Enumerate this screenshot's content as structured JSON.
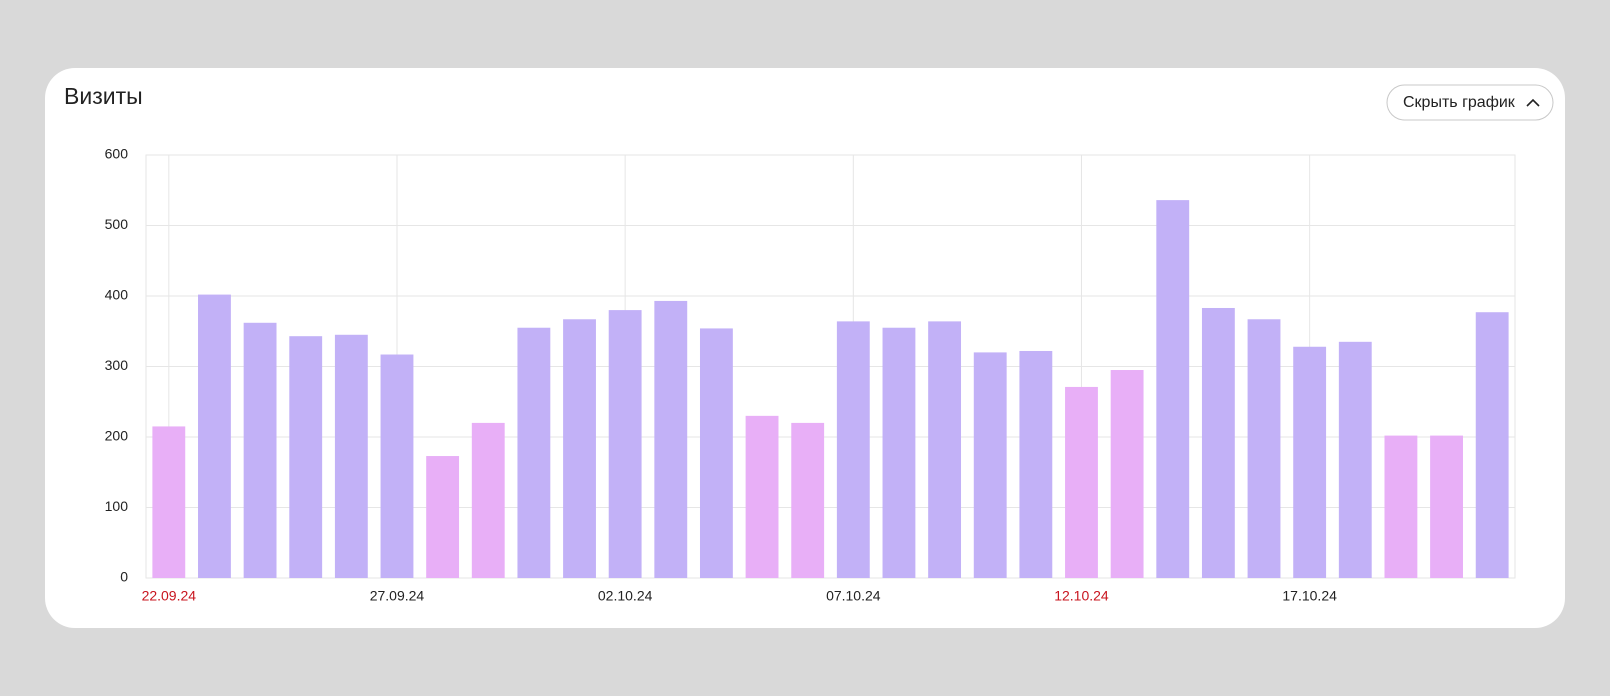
{
  "header": {
    "title": "Визиты",
    "button": "Скрыть график"
  },
  "chart_data": {
    "type": "bar",
    "categories": [
      "22.09.24",
      null,
      null,
      null,
      null,
      "27.09.24",
      null,
      null,
      null,
      null,
      "02.10.24",
      null,
      null,
      null,
      null,
      "07.10.24",
      null,
      null,
      null,
      null,
      "12.10.24",
      null,
      null,
      null,
      null,
      "17.10.24",
      null,
      null,
      null,
      null
    ],
    "values": [
      215,
      402,
      362,
      343,
      345,
      317,
      173,
      220,
      355,
      367,
      380,
      393,
      354,
      230,
      220,
      364,
      355,
      364,
      320,
      322,
      271,
      295,
      536,
      383,
      367,
      328,
      335,
      202,
      202,
      377
    ],
    "colors": [
      "#e8aff7",
      "#c2b1f7",
      "#c2b1f7",
      "#c2b1f7",
      "#c2b1f7",
      "#c2b1f7",
      "#e8aff7",
      "#e8aff7",
      "#c2b1f7",
      "#c2b1f7",
      "#c2b1f7",
      "#c2b1f7",
      "#c2b1f7",
      "#e8aff7",
      "#e8aff7",
      "#c2b1f7",
      "#c2b1f7",
      "#c2b1f7",
      "#c2b1f7",
      "#c2b1f7",
      "#e8aff7",
      "#e8aff7",
      "#c2b1f7",
      "#c2b1f7",
      "#c2b1f7",
      "#c2b1f7",
      "#c2b1f7",
      "#e8aff7",
      "#e8aff7",
      "#c2b1f7"
    ],
    "weekend_color": "#e8aff7",
    "weekend_label_color": "#c8141e",
    "ylim": [
      0,
      600
    ],
    "yticks": [
      0,
      100,
      200,
      300,
      400,
      500,
      600
    ],
    "grid": true
  }
}
